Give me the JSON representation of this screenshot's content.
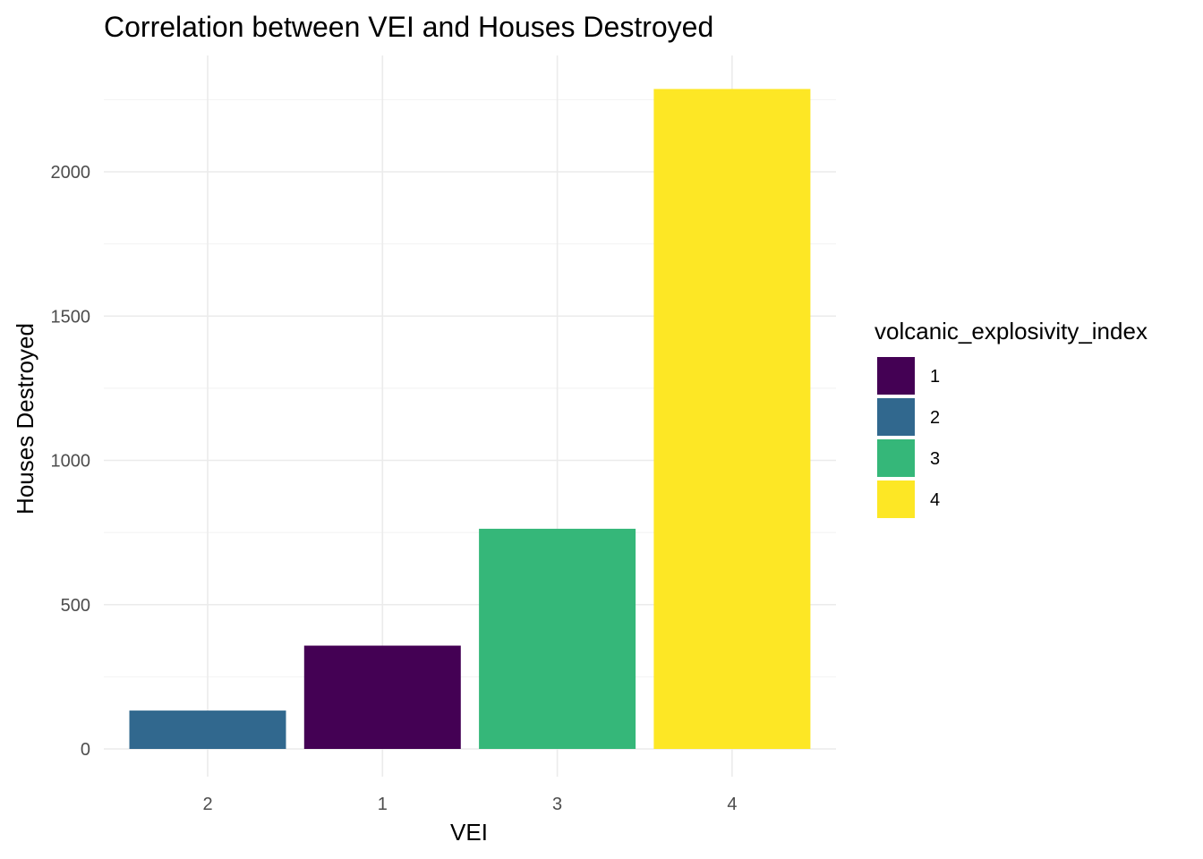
{
  "chart_data": {
    "type": "bar",
    "title": "Correlation between VEI and Houses Destroyed",
    "xlabel": "VEI",
    "ylabel": "Houses Destroyed",
    "categories": [
      "2",
      "1",
      "3",
      "4"
    ],
    "values": [
      133,
      358,
      763,
      2287
    ],
    "fill_keys": [
      "2",
      "1",
      "3",
      "4"
    ],
    "ylim": [
      0,
      2300
    ],
    "yticks": [
      0,
      500,
      1000,
      1500,
      2000
    ],
    "grid": true,
    "legend": {
      "title": "volcanic_explosivity_index",
      "position": "right",
      "items": [
        {
          "label": "1",
          "color": "#440154"
        },
        {
          "label": "2",
          "color": "#31688E"
        },
        {
          "label": "3",
          "color": "#35B779"
        },
        {
          "label": "4",
          "color": "#FDE725"
        }
      ]
    }
  }
}
